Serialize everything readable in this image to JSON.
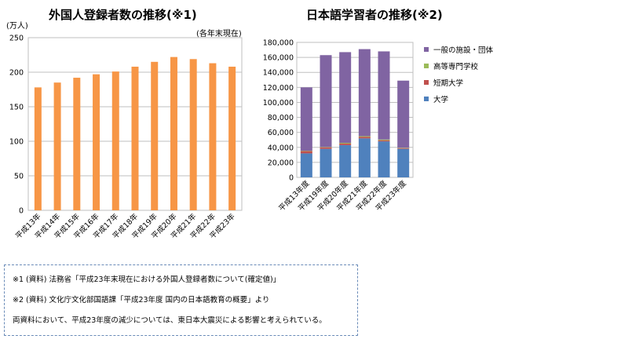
{
  "titles": {
    "left": "外国人登録者数の推移(※1)",
    "right": "日本語学習者の推移(※2)"
  },
  "left_unit": "(万人)",
  "left_note": "(各年末現在)",
  "notes": [
    "※1 (資料) 法務省「平成23年末現在における外国人登録者数について(確定値)」",
    "※2 (資料) 文化庁文化部国語課「平成23年度 国内の日本語教育の概要」より",
    "両資料において、平成23年度の減少については、東日本大震災による影響と考えられている。"
  ],
  "chart_data": [
    {
      "type": "bar",
      "title": "外国人登録者数の推移(※1)",
      "ylabel": "(万人)",
      "ylim": [
        0,
        250
      ],
      "yticks": [
        0,
        50,
        100,
        150,
        200,
        250
      ],
      "grid": true,
      "categories": [
        "平成13年",
        "平成14年",
        "平成15年",
        "平成16年",
        "平成17年",
        "平成18年",
        "平成19年",
        "平成20年",
        "平成21年",
        "平成22年",
        "平成23年"
      ],
      "values": [
        178,
        185,
        192,
        197,
        201,
        208,
        215,
        222,
        219,
        213,
        208
      ],
      "color": "#f79646"
    },
    {
      "type": "bar",
      "stacked": true,
      "title": "日本語学習者の推移(※2)",
      "ylim": [
        0,
        180000
      ],
      "yticks": [
        0,
        20000,
        40000,
        60000,
        80000,
        100000,
        120000,
        140000,
        160000,
        180000
      ],
      "ytick_labels": [
        "0",
        "20,000",
        "40,000",
        "60,000",
        "80,000",
        "100,000",
        "120,000",
        "140,000",
        "160,000",
        "180,000"
      ],
      "grid": true,
      "legend": "right",
      "categories": [
        "平成13年度",
        "平成19年度",
        "平成20年度",
        "平成21年度",
        "平成22年度",
        "平成23年度"
      ],
      "series": [
        {
          "name": "大学",
          "color": "#4f81bd",
          "values": [
            32000,
            38000,
            43000,
            52000,
            48000,
            38000
          ]
        },
        {
          "name": "短期大学",
          "color": "#c0504d",
          "values": [
            3000,
            2000,
            2000,
            2000,
            1500,
            1000
          ]
        },
        {
          "name": "高等専門学校",
          "color": "#9bbb59",
          "values": [
            500,
            500,
            1000,
            1000,
            1000,
            500
          ]
        },
        {
          "name": "一般の施設・団体",
          "color": "#8064a2",
          "values": [
            84500,
            122500,
            121000,
            116000,
            117500,
            89500
          ]
        }
      ]
    }
  ]
}
